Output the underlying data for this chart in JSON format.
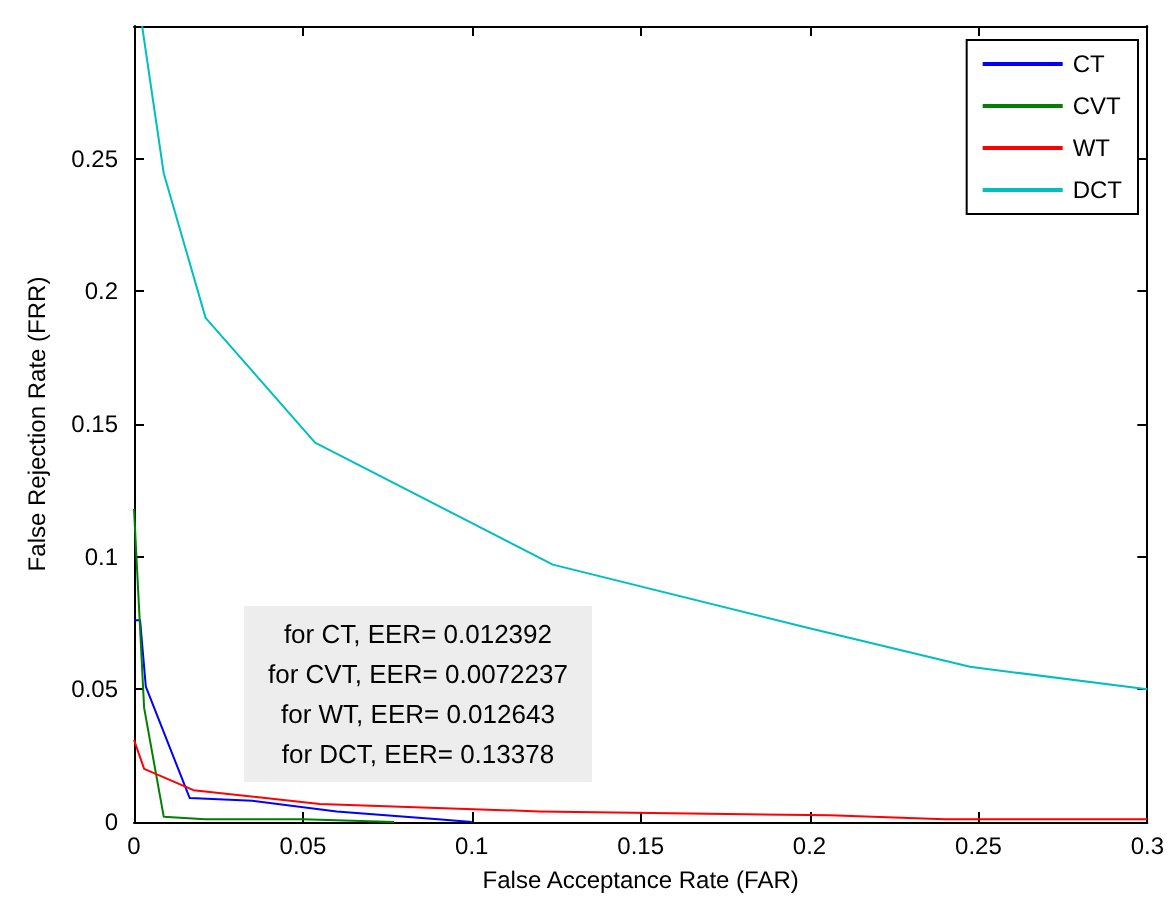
{
  "chart_data": {
    "type": "line",
    "xlabel": "False Acceptance Rate (FAR)",
    "ylabel": "False Rejection Rate (FRR)",
    "xlim": [
      0,
      0.3
    ],
    "xticks": [
      0,
      0.05,
      0.1,
      0.15,
      0.2,
      0.25,
      0.3
    ],
    "ylim": [
      0,
      0.3
    ],
    "yticks": [
      0,
      0.05,
      0.1,
      0.15,
      0.2,
      0.25
    ],
    "grid": false,
    "legend": "top right",
    "marker": "none",
    "line_style": "solid",
    "annotations": [
      "for CT, EER= 0.012392",
      "for CVT, EER= 0.0072237",
      "for WT, EER= 0.012643",
      "for DCT, EER= 0.13378"
    ],
    "series": [
      {
        "name": "CT",
        "color": "#0000ff",
        "x": [
          0,
          0.0018,
          0.0035,
          0.0165,
          0.035,
          0.06,
          0.09,
          0.1
        ],
        "values": [
          0.076,
          0.076,
          0.051,
          0.009,
          0.008,
          0.004,
          0.001,
          0
        ]
      },
      {
        "name": "CVT",
        "color": "#008000",
        "x": [
          0,
          0.003,
          0.0088,
          0.021,
          0.05,
          0.077
        ],
        "values": [
          0.118,
          0.043,
          0.002,
          0.001,
          0.001,
          0
        ]
      },
      {
        "name": "WT",
        "color": "#ff0000",
        "x": [
          0,
          0.003,
          0.0176,
          0.055,
          0.12,
          0.206,
          0.24,
          0.3
        ],
        "values": [
          0.031,
          0.02,
          0.012,
          0.0068,
          0.004,
          0.0025,
          0.001,
          0.001
        ]
      },
      {
        "name": "DCT",
        "color": "#00bfbf",
        "x": [
          0.0024,
          0.0088,
          0.0212,
          0.0536,
          0.124,
          0.2,
          0.2475,
          0.3
        ],
        "values": [
          0.3,
          0.2445,
          0.19,
          0.143,
          0.097,
          0.073,
          0.0585,
          0.05
        ]
      }
    ]
  }
}
